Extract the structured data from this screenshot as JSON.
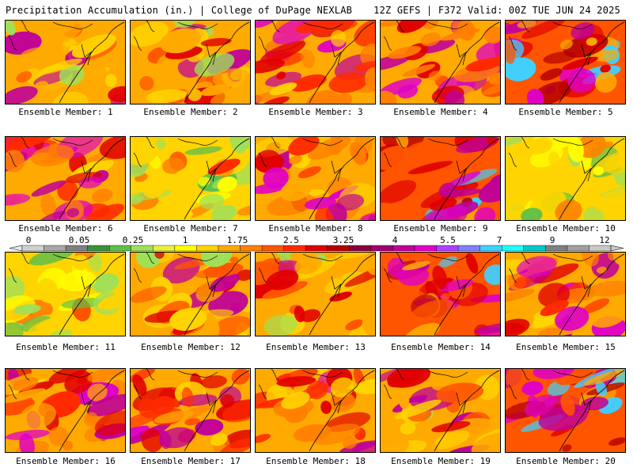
{
  "header": {
    "left": "Precipitation Accumulation (in.) | College of DuPage NEXLAB",
    "right": "12Z GEFS | F372 Valid: 00Z TUE JUN 24 2025"
  },
  "colorbar": {
    "labels": [
      "0",
      "0.05",
      "0.25",
      "1",
      "1.75",
      "2.5",
      "3.25",
      "4",
      "5.5",
      "7",
      "9",
      "12"
    ],
    "colors": [
      "#d0d0d0",
      "#a8a8a8",
      "#808080",
      "#3d8f3d",
      "#5fbf4a",
      "#9ee05a",
      "#e8f040",
      "#ffff00",
      "#ffd400",
      "#ffaa00",
      "#ff8000",
      "#ff5500",
      "#ff2a00",
      "#e00000",
      "#b40000",
      "#8a0040",
      "#a0006e",
      "#c0009a",
      "#e000c8",
      "#b040ff",
      "#8080ff",
      "#40d0ff",
      "#20ffff",
      "#00c8c8",
      "#808080",
      "#a0a0a0",
      "#c8c8c8"
    ]
  },
  "panels": [
    {
      "caption": "Ensemble Member: 1"
    },
    {
      "caption": "Ensemble Member: 2"
    },
    {
      "caption": "Ensemble Member: 3"
    },
    {
      "caption": "Ensemble Member: 4"
    },
    {
      "caption": "Ensemble Member: 5"
    },
    {
      "caption": "Ensemble Member: 6"
    },
    {
      "caption": "Ensemble Member: 7"
    },
    {
      "caption": "Ensemble Member: 8"
    },
    {
      "caption": "Ensemble Member: 9"
    },
    {
      "caption": "Ensemble Member: 10"
    },
    {
      "caption": "Ensemble Member: 11"
    },
    {
      "caption": "Ensemble Member: 12"
    },
    {
      "caption": "Ensemble Member: 13"
    },
    {
      "caption": "Ensemble Member: 14"
    },
    {
      "caption": "Ensemble Member: 15"
    },
    {
      "caption": "Ensemble Member: 16"
    },
    {
      "caption": "Ensemble Member: 17"
    },
    {
      "caption": "Ensemble Member: 18"
    },
    {
      "caption": "Ensemble Member: 19"
    },
    {
      "caption": "Ensemble Member: 20"
    }
  ]
}
